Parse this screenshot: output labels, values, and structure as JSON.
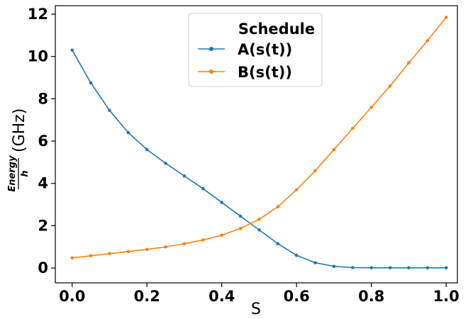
{
  "chart_data": {
    "type": "line",
    "xlabel": "S",
    "ylabel": {
      "numerator": "Energy",
      "denominator": "h",
      "unit": "(GHz)"
    },
    "xlim": [
      -0.045,
      1.03
    ],
    "ylim": [
      -0.7,
      12.4
    ],
    "xticks": [
      0.0,
      0.2,
      0.4,
      0.6,
      0.8,
      1.0
    ],
    "xtick_labels": [
      "0.0",
      "0.2",
      "0.4",
      "0.6",
      "0.8",
      "1.0"
    ],
    "yticks": [
      0,
      2,
      4,
      6,
      8,
      10,
      12
    ],
    "ytick_labels": [
      "0",
      "2",
      "4",
      "6",
      "8",
      "10",
      "12"
    ],
    "grid": false,
    "legend": {
      "title": "Schedule",
      "placement": "top-center"
    },
    "series": [
      {
        "name": "A(s(t))",
        "color": "#1f77b4",
        "marker": "circle",
        "x": [
          0.0,
          0.05,
          0.1,
          0.15,
          0.2,
          0.25,
          0.3,
          0.35,
          0.4,
          0.45,
          0.5,
          0.55,
          0.6,
          0.65,
          0.7,
          0.75,
          0.8,
          0.85,
          0.9,
          0.95,
          1.0
        ],
        "y": [
          10.3,
          8.75,
          7.45,
          6.4,
          5.6,
          4.95,
          4.35,
          3.75,
          3.1,
          2.45,
          1.8,
          1.15,
          0.6,
          0.25,
          0.08,
          0.02,
          0.01,
          0.01,
          0.01,
          0.01,
          0.01
        ]
      },
      {
        "name": "B(s(t))",
        "color": "#ff7f0e",
        "marker": "circle",
        "x": [
          0.0,
          0.05,
          0.1,
          0.15,
          0.2,
          0.25,
          0.3,
          0.35,
          0.4,
          0.45,
          0.5,
          0.55,
          0.6,
          0.65,
          0.7,
          0.75,
          0.8,
          0.85,
          0.9,
          0.95,
          1.0
        ],
        "y": [
          0.48,
          0.58,
          0.68,
          0.78,
          0.88,
          1.0,
          1.15,
          1.33,
          1.55,
          1.87,
          2.3,
          2.9,
          3.7,
          4.6,
          5.6,
          6.6,
          7.6,
          8.6,
          9.7,
          10.75,
          11.85
        ]
      }
    ]
  }
}
